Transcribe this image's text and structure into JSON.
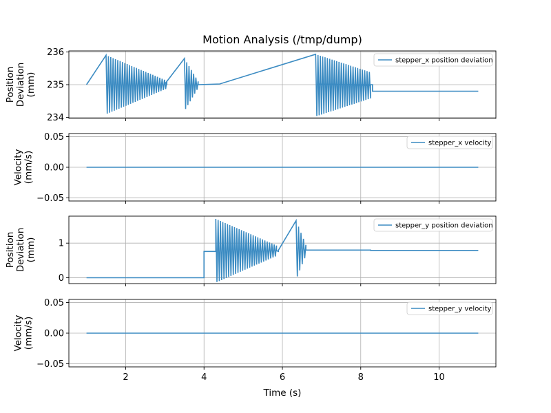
{
  "chart_data": {
    "title": "Motion Analysis (/tmp/dump)",
    "xlabel": "Time (s)",
    "xlim": [
      0.55,
      11.45
    ],
    "xticks": [
      2,
      4,
      6,
      8,
      10
    ],
    "series_color": "#3b8bc2",
    "grid": true,
    "legend_placement": "top-right",
    "subplots": [
      {
        "type": "line",
        "series_name": "stepper_x position deviation",
        "ylabel": [
          "Position",
          "Deviation",
          "(mm)"
        ],
        "ylim": [
          233.97,
          236.03
        ],
        "yticks": [
          234,
          235,
          236
        ],
        "baseline": 235.0,
        "steps": [
          [
            1.0,
            235.0
          ],
          [
            3.0,
            235.02
          ],
          [
            4.4,
            235.02
          ],
          [
            6.9,
            235.0
          ],
          [
            8.3,
            234.8
          ],
          [
            11.0,
            234.8
          ]
        ],
        "bursts": [
          {
            "start": 1.5,
            "end": 3.05,
            "center": 235.0,
            "amp_start": 0.9,
            "amp_end": 0.12,
            "period": 0.06
          },
          {
            "start": 3.5,
            "end": 3.85,
            "center": 235.0,
            "amp_start": 0.8,
            "amp_end": 0.1,
            "period": 0.06
          },
          {
            "start": 6.85,
            "end": 8.25,
            "center": 234.98,
            "amp_start": 0.95,
            "amp_end": 0.4,
            "period": 0.06
          }
        ]
      },
      {
        "type": "line",
        "series_name": "stepper_x velocity",
        "ylabel": [
          "Velocity",
          "(mm/s)"
        ],
        "ylim": [
          -0.055,
          0.055
        ],
        "yticks": [
          -0.05,
          0.0,
          0.05
        ],
        "ytick_labels": [
          "−0.05",
          "0.00",
          "0.05"
        ],
        "steps": [
          [
            1.0,
            0.0
          ],
          [
            11.0,
            0.0
          ]
        ],
        "bursts": []
      },
      {
        "type": "line",
        "series_name": "stepper_y position deviation",
        "ylabel": [
          "Position",
          "Deviation",
          "(mm)"
        ],
        "ylim": [
          -0.17,
          1.78
        ],
        "yticks": [
          0,
          1
        ],
        "steps": [
          [
            1.0,
            0.0
          ],
          [
            3.95,
            0.0
          ],
          [
            4.0,
            0.76
          ],
          [
            4.3,
            0.76
          ],
          [
            5.9,
            0.8
          ],
          [
            6.55,
            0.8
          ],
          [
            8.25,
            0.79
          ],
          [
            11.0,
            0.79
          ]
        ],
        "bursts": [
          {
            "start": 4.3,
            "end": 5.85,
            "center": 0.78,
            "amp_start": 0.92,
            "amp_end": 0.15,
            "period": 0.06
          },
          {
            "start": 6.35,
            "end": 6.6,
            "center": 0.8,
            "amp_start": 0.85,
            "amp_end": 0.15,
            "period": 0.06
          }
        ]
      },
      {
        "type": "line",
        "series_name": "stepper_y velocity",
        "ylabel": [
          "Velocity",
          "(mm/s)"
        ],
        "ylim": [
          -0.055,
          0.055
        ],
        "yticks": [
          -0.05,
          0.0,
          0.05
        ],
        "ytick_labels": [
          "−0.05",
          "0.00",
          "0.05"
        ],
        "steps": [
          [
            1.0,
            0.0
          ],
          [
            11.0,
            0.0
          ]
        ],
        "bursts": []
      }
    ]
  }
}
